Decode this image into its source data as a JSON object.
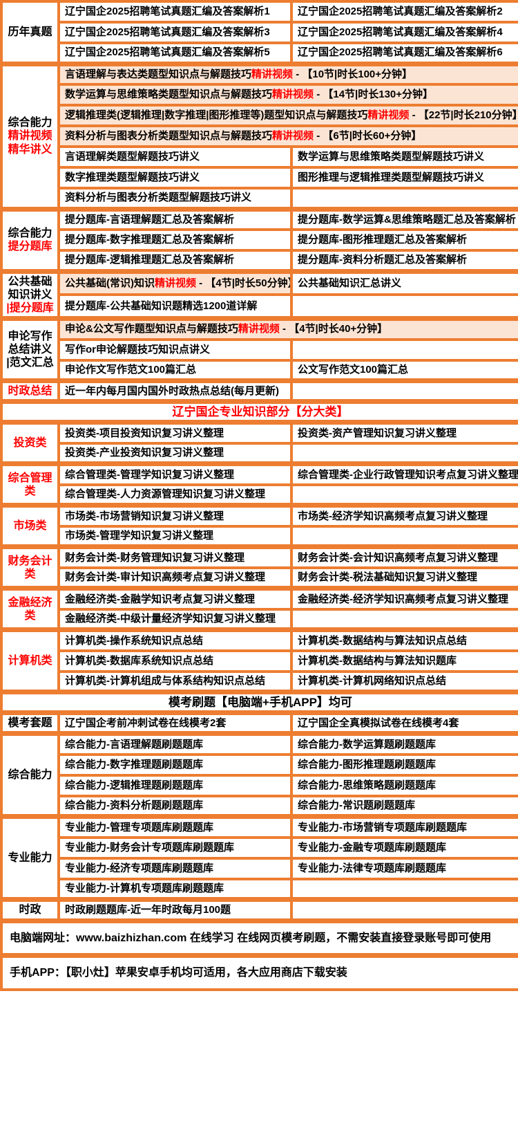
{
  "colors": {
    "border": "#ED7D31",
    "pink": "#FCE4D4",
    "red": "#FF0000",
    "text": "#000000"
  },
  "rows": [
    {
      "label": {
        "span": 3,
        "lines": [
          {
            "t": "历年真题"
          }
        ]
      },
      "cells": [
        {
          "t": "辽宁国企2025招聘笔试真题汇编及答案解析1"
        },
        {
          "t": "辽宁国企2025招聘笔试真题汇编及答案解析2"
        }
      ]
    },
    {
      "cells": [
        {
          "t": "辽宁国企2025招聘笔试真题汇编及答案解析3"
        },
        {
          "t": "辽宁国企2025招聘笔试真题汇编及答案解析4"
        }
      ]
    },
    {
      "cells": [
        {
          "t": "辽宁国企2025招聘笔试真题汇编及答案解析5"
        },
        {
          "t": "辽宁国企2025招聘笔试真题汇编及答案解析6"
        }
      ]
    },
    {
      "sec": true,
      "label": {
        "span": 7,
        "lines": [
          {
            "t": "综合能力"
          },
          {
            "t": "精讲视频",
            "red": true
          },
          {
            "t": "精华讲义",
            "red": true
          }
        ]
      },
      "cells": [
        {
          "colspan": 2,
          "pink": true,
          "pre": "言语理解与表达类题型知识点与解题技巧",
          "hl": "精讲视频",
          "post": " - 【10节|时长100+分钟】"
        }
      ]
    },
    {
      "cells": [
        {
          "colspan": 2,
          "pink": true,
          "pre": "数学运算与思维策略类题型知识点与解题技巧",
          "hl": "精讲视频",
          "post": " - 【14节|时长130+分钟】"
        }
      ]
    },
    {
      "cells": [
        {
          "colspan": 2,
          "pink": true,
          "pre": "逻辑推理类(逻辑推理|数字推理|图形推理等)题型知识点与解题技巧",
          "hl": "精讲视频",
          "post": " - 【22节|时长210分钟】"
        }
      ]
    },
    {
      "cells": [
        {
          "colspan": 2,
          "pink": true,
          "pre": "资料分析与图表分析类题型知识点与解题技巧",
          "hl": "精讲视频",
          "post": " - 【6节|时长60+分钟】"
        }
      ]
    },
    {
      "cells": [
        {
          "t": "言语理解类题型解题技巧讲义"
        },
        {
          "t": "数学运算与思维策略类题型解题技巧讲义"
        }
      ]
    },
    {
      "cells": [
        {
          "t": "数字推理类题型解题技巧讲义"
        },
        {
          "t": "图形推理与逻辑推理类题型解题技巧讲义"
        }
      ]
    },
    {
      "cells": [
        {
          "t": "资料分析与图表分析类题型解题技巧讲义"
        },
        {
          "t": ""
        }
      ]
    },
    {
      "sec": true,
      "label": {
        "span": 3,
        "lines": [
          {
            "t": "综合能力"
          },
          {
            "t": "提分题库",
            "red": true
          }
        ]
      },
      "cells": [
        {
          "t": "提分题库-言语理解题汇总及答案解析"
        },
        {
          "t": "提分题库-数学运算&思维策略题汇总及答案解析"
        }
      ]
    },
    {
      "cells": [
        {
          "t": "提分题库-数字推理题汇总及答案解析"
        },
        {
          "t": "提分题库-图形推理题汇总及答案解析"
        }
      ]
    },
    {
      "cells": [
        {
          "t": "提分题库-逻辑推理题汇总及答案解析"
        },
        {
          "t": "提分题库-资料分析题汇总及答案解析"
        }
      ]
    },
    {
      "sec": true,
      "label": {
        "span": 2,
        "lines": [
          {
            "t": "公共基础"
          },
          {
            "t": "知识讲义"
          },
          {
            "t": "|提分题库",
            "red": true
          }
        ]
      },
      "cells": [
        {
          "pink": true,
          "pre": "公共基础(常识)知识",
          "hl": "精讲视频",
          "post": " - 【4节|时长50分钟】"
        },
        {
          "t": "公共基础知识汇总讲义"
        }
      ]
    },
    {
      "cells": [
        {
          "t": "提分题库-公共基础知识题精选1200道详解"
        },
        {
          "t": ""
        }
      ]
    },
    {
      "sec": true,
      "label": {
        "span": 3,
        "lines": [
          {
            "t": "申论写作"
          },
          {
            "t": "总结讲义"
          },
          {
            "t": "|范文汇总"
          }
        ]
      },
      "cells": [
        {
          "colspan": 2,
          "pink": true,
          "pre": "申论&公文写作题型知识点与解题技巧",
          "hl": "精讲视频",
          "post": " - 【4节|时长40+分钟】"
        }
      ]
    },
    {
      "cells": [
        {
          "t": "写作or申论解题技巧知识点讲义"
        },
        {
          "t": ""
        }
      ]
    },
    {
      "cells": [
        {
          "t": "申论作文写作范文100篇汇总"
        },
        {
          "t": "公文写作范文100篇汇总"
        }
      ]
    },
    {
      "sec": true,
      "label": {
        "span": 1,
        "lines": [
          {
            "t": "时政总结",
            "red": true
          }
        ]
      },
      "cells": [
        {
          "t": "近一年内每月国内国外时政热点总结(每月更新)"
        },
        {
          "t": ""
        }
      ]
    },
    {
      "sec": true,
      "header": {
        "t": "辽宁国企专业知识部分【分大类】",
        "red": true
      }
    },
    {
      "sec": true,
      "label": {
        "span": 2,
        "lines": [
          {
            "t": "投资类",
            "red": true
          }
        ]
      },
      "cells": [
        {
          "t": "投资类-项目投资知识复习讲义整理"
        },
        {
          "t": "投资类-资产管理知识复习讲义整理"
        }
      ]
    },
    {
      "cells": [
        {
          "t": "投资类-产业投资知识复习讲义整理"
        },
        {
          "t": ""
        }
      ]
    },
    {
      "sec": true,
      "label": {
        "span": 2,
        "lines": [
          {
            "t": "综合管理",
            "red": true
          },
          {
            "t": "类",
            "red": true
          }
        ]
      },
      "cells": [
        {
          "t": "综合管理类-管理学知识复习讲义整理"
        },
        {
          "t": "综合管理类-企业行政管理知识考点复习讲义整理"
        }
      ]
    },
    {
      "cells": [
        {
          "t": "综合管理类-人力资源管理知识复习讲义整理"
        },
        {
          "t": ""
        }
      ]
    },
    {
      "sec": true,
      "label": {
        "span": 2,
        "lines": [
          {
            "t": "市场类",
            "red": true
          }
        ]
      },
      "cells": [
        {
          "t": "市场类-市场营销知识复习讲义整理"
        },
        {
          "t": "市场类-经济学知识高频考点复习讲义整理"
        }
      ]
    },
    {
      "cells": [
        {
          "t": "市场类-管理学知识复习讲义整理"
        },
        {
          "t": ""
        }
      ]
    },
    {
      "sec": true,
      "label": {
        "span": 2,
        "lines": [
          {
            "t": "财务会计",
            "red": true
          },
          {
            "t": "类",
            "red": true
          }
        ]
      },
      "cells": [
        {
          "t": "财务会计类-财务管理知识复习讲义整理"
        },
        {
          "t": "财务会计类-会计知识高频考点复习讲义整理"
        }
      ]
    },
    {
      "cells": [
        {
          "t": "财务会计类-审计知识高频考点复习讲义整理"
        },
        {
          "t": "财务会计类-税法基础知识复习讲义整理"
        }
      ]
    },
    {
      "sec": true,
      "label": {
        "span": 2,
        "lines": [
          {
            "t": "金融经济",
            "red": true
          },
          {
            "t": "类",
            "red": true
          }
        ]
      },
      "cells": [
        {
          "t": "金融经济类-金融学知识考点复习讲义整理"
        },
        {
          "t": "金融经济类-经济学知识高频考点复习讲义整理"
        }
      ]
    },
    {
      "cells": [
        {
          "t": "金融经济类-中级计量经济学知识复习讲义整理"
        },
        {
          "t": ""
        }
      ]
    },
    {
      "sec": true,
      "label": {
        "span": 3,
        "lines": [
          {
            "t": "计算机类",
            "red": true
          }
        ]
      },
      "cells": [
        {
          "t": "计算机类-操作系统知识点总结"
        },
        {
          "t": "计算机类-数据结构与算法知识点总结"
        }
      ]
    },
    {
      "cells": [
        {
          "t": "计算机类-数据库系统知识点总结"
        },
        {
          "t": "计算机类-数据结构与算法知识题库"
        }
      ]
    },
    {
      "cells": [
        {
          "t": "计算机类-计算机组成与体系结构知识点总结"
        },
        {
          "t": "计算机类-计算机网络知识点总结"
        }
      ]
    },
    {
      "sec": true,
      "header": {
        "t": "模考刷题【电脑端+手机APP】均可"
      }
    },
    {
      "sec": true,
      "label": {
        "span": 1,
        "lines": [
          {
            "t": "模考套题"
          }
        ]
      },
      "cells": [
        {
          "t": "辽宁国企考前冲刺试卷在线模考2套"
        },
        {
          "t": "辽宁国企全真模拟试卷在线模考4套"
        }
      ]
    },
    {
      "sec": true,
      "label": {
        "span": 4,
        "lines": [
          {
            "t": "综合能力"
          }
        ]
      },
      "cells": [
        {
          "t": "综合能力-言语理解题刷题题库"
        },
        {
          "t": "综合能力-数学运算题刷题题库"
        }
      ]
    },
    {
      "cells": [
        {
          "t": "综合能力-数字推理题刷题题库"
        },
        {
          "t": "综合能力-图形推理题刷题题库"
        }
      ]
    },
    {
      "cells": [
        {
          "t": "综合能力-逻辑推理题刷题题库"
        },
        {
          "t": "综合能力-思维策略题刷题题库"
        }
      ]
    },
    {
      "cells": [
        {
          "t": "综合能力-资料分析题刷题题库"
        },
        {
          "t": "综合能力-常识题刷题题库"
        }
      ]
    },
    {
      "sec": true,
      "label": {
        "span": 4,
        "lines": [
          {
            "t": "专业能力"
          }
        ]
      },
      "cells": [
        {
          "t": "专业能力-管理专项题库刷题题库"
        },
        {
          "t": "专业能力-市场营销专项题库刷题题库"
        }
      ]
    },
    {
      "cells": [
        {
          "t": "专业能力-财务会计专项题库刷题题库"
        },
        {
          "t": "专业能力-金融专项题库刷题题库"
        }
      ]
    },
    {
      "cells": [
        {
          "t": "专业能力-经济专项题库刷题题库"
        },
        {
          "t": "专业能力-法律专项题库刷题题库"
        }
      ]
    },
    {
      "cells": [
        {
          "t": "专业能力-计算机专项题库刷题题库"
        },
        {
          "t": ""
        }
      ]
    },
    {
      "sec": true,
      "label": {
        "span": 1,
        "lines": [
          {
            "t": "时政"
          }
        ]
      },
      "cells": [
        {
          "t": "时政刷题题库-近一年时政每月100题"
        },
        {
          "t": ""
        }
      ]
    },
    {
      "sec": true,
      "footer": {
        "t": "电脑端网址：www.baizhizhan.com 在线学习 在线网页模考刷题，不需安装直接登录账号即可使用"
      }
    },
    {
      "sec": true,
      "footer": {
        "t": "手机APP：【职小灶】苹果安卓手机均可适用，各大应用商店下载安装"
      }
    }
  ]
}
